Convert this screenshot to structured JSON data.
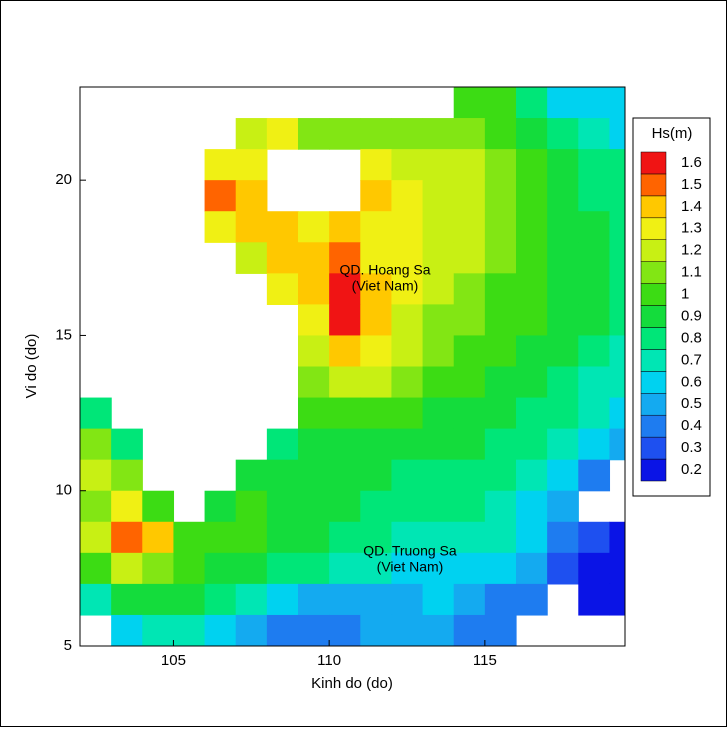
{
  "chart_data": {
    "type": "heatmap",
    "x_label": "Kinh do (do)",
    "y_label": "Vi do (do)",
    "xlim": [
      102,
      119.5
    ],
    "ylim": [
      5,
      23
    ],
    "xticks": [
      105,
      110,
      115
    ],
    "yticks": [
      5,
      10,
      15,
      20
    ],
    "legend_title": "Hs(m)",
    "levels": [
      0.2,
      0.3,
      0.4,
      0.5,
      0.6,
      0.7,
      0.8,
      0.9,
      1,
      1.1,
      1.2,
      1.3,
      1.4,
      1.5,
      1.6
    ],
    "level_colors": [
      "#0a14e6",
      "#1e50f0",
      "#1e7cf0",
      "#14aaf0",
      "#00d2f0",
      "#00e6b4",
      "#00e678",
      "#14dc3c",
      "#3cdc14",
      "#82e614",
      "#c8f014",
      "#f0f014",
      "#ffc800",
      "#ff6400",
      "#f01414"
    ],
    "annotations": [
      "QD. Hoang Sa",
      "(Viet Nam)",
      "QD. Truong Sa",
      "(Viet Nam)"
    ],
    "x": [
      102.5,
      103.5,
      104.5,
      105.5,
      106.5,
      107.5,
      108.5,
      109.5,
      110.5,
      111.5,
      112.5,
      113.5,
      114.5,
      115.5,
      116.5,
      117.5,
      118.5,
      119.5
    ],
    "y": [
      22.5,
      21.5,
      20.5,
      19.5,
      18.5,
      17.5,
      16.5,
      15.5,
      14.5,
      13.5,
      12.5,
      11.5,
      10.5,
      9.5,
      8.5,
      7.5,
      6.5,
      5.5
    ],
    "values": [
      [
        null,
        null,
        null,
        null,
        null,
        null,
        null,
        null,
        null,
        null,
        null,
        null,
        1.0,
        1.0,
        0.8,
        0.6,
        0.6,
        0.6
      ],
      [
        null,
        null,
        null,
        null,
        null,
        1.2,
        1.3,
        1.1,
        1.1,
        1.1,
        1.1,
        1.1,
        1.1,
        1.0,
        0.9,
        0.8,
        0.7,
        0.6
      ],
      [
        null,
        null,
        null,
        null,
        1.3,
        1.3,
        null,
        null,
        null,
        1.3,
        1.2,
        1.2,
        1.2,
        1.1,
        1.0,
        0.9,
        0.8,
        0.8
      ],
      [
        null,
        null,
        null,
        null,
        1.5,
        1.4,
        null,
        null,
        null,
        1.4,
        1.3,
        1.2,
        1.2,
        1.1,
        1.0,
        0.9,
        0.8,
        0.8
      ],
      [
        null,
        null,
        null,
        null,
        1.3,
        1.4,
        1.4,
        1.3,
        1.4,
        1.3,
        1.3,
        1.2,
        1.2,
        1.1,
        1.0,
        0.9,
        0.9,
        0.8
      ],
      [
        null,
        null,
        null,
        null,
        null,
        1.2,
        1.4,
        1.4,
        1.5,
        1.3,
        1.3,
        1.2,
        1.2,
        1.1,
        1.0,
        0.9,
        0.9,
        0.8
      ],
      [
        null,
        null,
        null,
        null,
        null,
        null,
        1.3,
        1.4,
        1.6,
        1.4,
        1.3,
        1.2,
        1.1,
        1.0,
        1.0,
        0.9,
        0.9,
        0.8
      ],
      [
        null,
        null,
        null,
        null,
        null,
        null,
        null,
        1.3,
        1.6,
        1.4,
        1.2,
        1.1,
        1.1,
        1.0,
        1.0,
        0.9,
        0.9,
        0.8
      ],
      [
        null,
        null,
        null,
        null,
        null,
        null,
        null,
        1.2,
        1.4,
        1.3,
        1.2,
        1.1,
        1.0,
        1.0,
        0.9,
        0.9,
        0.8,
        0.7
      ],
      [
        null,
        null,
        null,
        null,
        null,
        null,
        null,
        1.1,
        1.2,
        1.2,
        1.1,
        1.0,
        1.0,
        0.9,
        0.9,
        0.8,
        0.7,
        0.7
      ],
      [
        0.8,
        null,
        null,
        null,
        null,
        null,
        null,
        1.0,
        1.0,
        1.0,
        1.0,
        0.9,
        0.9,
        0.9,
        0.8,
        0.8,
        0.7,
        0.6
      ],
      [
        1.1,
        0.8,
        null,
        null,
        null,
        null,
        0.8,
        0.9,
        0.9,
        0.9,
        0.9,
        0.9,
        0.9,
        0.8,
        0.8,
        0.7,
        0.6,
        0.5
      ],
      [
        1.2,
        1.1,
        null,
        null,
        null,
        0.9,
        0.9,
        0.9,
        0.9,
        0.9,
        0.8,
        0.8,
        0.8,
        0.8,
        0.7,
        0.6,
        0.4,
        null
      ],
      [
        1.1,
        1.3,
        1.0,
        null,
        0.9,
        1.0,
        0.9,
        0.9,
        0.9,
        0.8,
        0.8,
        0.8,
        0.8,
        0.7,
        0.6,
        0.5,
        null,
        null
      ],
      [
        1.2,
        1.5,
        1.4,
        1.0,
        1.0,
        1.0,
        0.9,
        0.9,
        0.8,
        0.8,
        0.7,
        0.7,
        0.7,
        0.7,
        0.6,
        0.4,
        0.3,
        0.2
      ],
      [
        1.0,
        1.2,
        1.1,
        1.0,
        0.9,
        0.9,
        0.8,
        0.8,
        0.7,
        0.7,
        0.6,
        0.6,
        0.6,
        0.6,
        0.5,
        0.3,
        0.2,
        0.2
      ],
      [
        0.7,
        0.9,
        0.9,
        0.9,
        0.8,
        0.7,
        0.6,
        0.5,
        0.5,
        0.5,
        0.5,
        0.6,
        0.5,
        0.4,
        0.4,
        null,
        0.2,
        0.2
      ],
      [
        null,
        0.6,
        0.7,
        0.7,
        0.6,
        0.5,
        0.4,
        0.4,
        0.4,
        0.5,
        0.5,
        0.5,
        0.4,
        0.4,
        null,
        null,
        null,
        null
      ]
    ]
  }
}
